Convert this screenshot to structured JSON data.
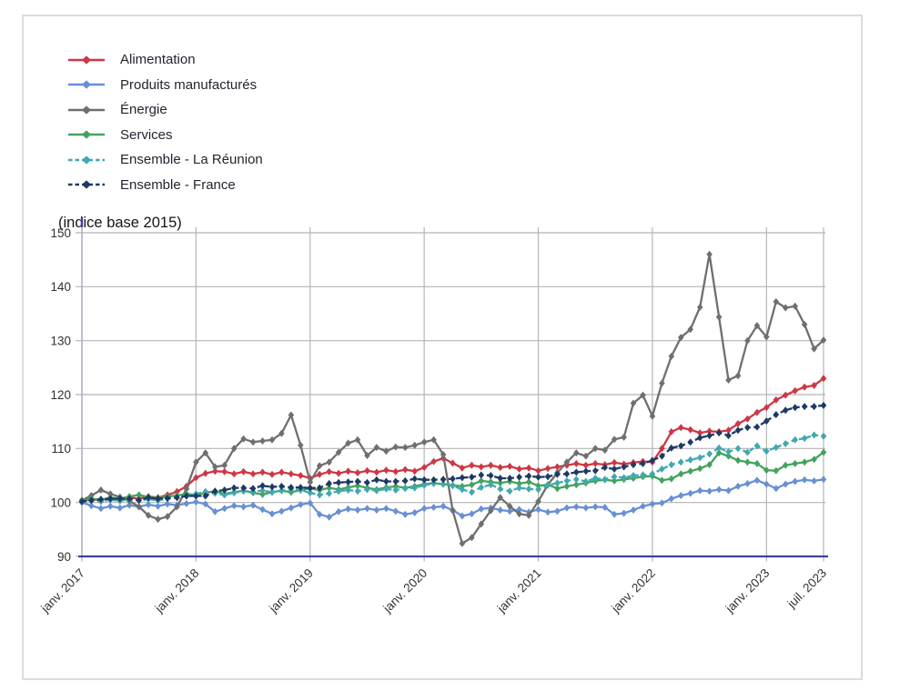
{
  "axis_title": "(indice base 2015)",
  "colors": {
    "axis_line": "#3b439c",
    "y_axis_line": "#a9abbe",
    "grid": "#b5b5b5",
    "tick_text": "#303030",
    "panel_border": "#dcdcdc",
    "background": "#ffffff"
  },
  "chart_data": {
    "type": "line",
    "title": "(indice base 2015)",
    "xlabel": "",
    "ylabel": "indice base 2015",
    "ylim": [
      90,
      150
    ],
    "y_ticks": [
      90,
      100,
      110,
      120,
      130,
      140,
      150
    ],
    "months": 79,
    "grid": true,
    "legend_position": "top-left",
    "x_ticks": [
      {
        "index": 0,
        "label": "janv. 2017"
      },
      {
        "index": 12,
        "label": "janv. 2018"
      },
      {
        "index": 24,
        "label": "janv. 2019"
      },
      {
        "index": 36,
        "label": "janv. 2020"
      },
      {
        "index": 48,
        "label": "janv. 2021"
      },
      {
        "index": 60,
        "label": "janv. 2022"
      },
      {
        "index": 72,
        "label": "janv. 2023"
      },
      {
        "index": 78,
        "label": "juil. 2023"
      }
    ],
    "series": [
      {
        "name": "Alimentation",
        "color": "#cd3745",
        "style": "solid",
        "values": [
          100.2,
          100.6,
          100.4,
          100.8,
          100.5,
          100.9,
          100.7,
          101.1,
          100.9,
          101.4,
          102.0,
          103.0,
          104.6,
          105.4,
          105.8,
          105.7,
          105.3,
          105.7,
          105.3,
          105.6,
          105.2,
          105.6,
          105.3,
          105.0,
          104.5,
          105.2,
          105.7,
          105.4,
          105.8,
          105.5,
          105.9,
          105.6,
          106.0,
          105.7,
          106.1,
          105.8,
          106.5,
          107.6,
          108.2,
          107.3,
          106.4,
          106.9,
          106.6,
          106.9,
          106.5,
          106.7,
          106.2,
          106.4,
          105.9,
          106.3,
          106.6,
          106.9,
          107.2,
          106.9,
          107.2,
          107.0,
          107.4,
          107.1,
          107.4,
          107.6,
          107.5,
          110.0,
          113.1,
          113.9,
          113.5,
          112.9,
          113.2,
          113.1,
          113.4,
          114.6,
          115.5,
          116.7,
          117.6,
          119.0,
          119.9,
          120.7,
          121.4,
          121.7,
          123.0
        ]
      },
      {
        "name": "Produits manufacturés",
        "color": "#6790d5",
        "style": "solid",
        "values": [
          100.0,
          99.4,
          98.9,
          99.3,
          99.0,
          99.5,
          99.2,
          99.6,
          99.3,
          99.7,
          99.5,
          99.8,
          100.1,
          99.7,
          98.3,
          98.9,
          99.4,
          99.2,
          99.5,
          98.7,
          97.9,
          98.4,
          99.0,
          99.6,
          99.9,
          97.8,
          97.3,
          98.3,
          98.8,
          98.6,
          98.9,
          98.6,
          98.9,
          98.4,
          97.8,
          98.1,
          98.9,
          99.1,
          99.3,
          98.6,
          97.5,
          97.9,
          98.8,
          99.0,
          98.6,
          98.4,
          98.7,
          98.2,
          98.7,
          98.2,
          98.4,
          99.0,
          99.2,
          99.0,
          99.2,
          99.1,
          97.8,
          98.0,
          98.6,
          99.3,
          99.7,
          99.9,
          100.7,
          101.3,
          101.7,
          102.2,
          102.1,
          102.4,
          102.2,
          103.0,
          103.5,
          104.1,
          103.4,
          102.6,
          103.4,
          103.9,
          104.2,
          104.0,
          104.3
        ]
      },
      {
        "name": "Énergie",
        "color": "#6f6f6f",
        "style": "solid",
        "values": [
          100.4,
          101.3,
          102.3,
          101.6,
          101.0,
          100.3,
          99.2,
          97.6,
          96.9,
          97.4,
          99.2,
          102.5,
          107.5,
          109.2,
          106.6,
          106.9,
          110.0,
          111.8,
          111.2,
          111.4,
          111.6,
          112.8,
          116.2,
          110.6,
          103.8,
          106.8,
          107.5,
          109.3,
          111.0,
          111.6,
          108.7,
          110.2,
          109.5,
          110.3,
          110.2,
          110.6,
          111.2,
          111.6,
          108.9,
          98.5,
          92.4,
          93.5,
          96.0,
          98.5,
          100.9,
          99.3,
          97.9,
          97.6,
          100.2,
          103.3,
          105.5,
          107.5,
          109.2,
          108.6,
          110.0,
          109.7,
          111.7,
          112.1,
          118.4,
          119.9,
          116.0,
          122.1,
          127.1,
          130.6,
          132.1,
          136.2,
          146.0,
          134.4,
          122.7,
          123.5,
          130.0,
          132.8,
          130.7,
          137.2,
          136.1,
          136.4,
          133.0,
          128.5,
          130.1
        ]
      },
      {
        "name": "Services",
        "color": "#44a25e",
        "style": "solid",
        "values": [
          100.4,
          100.7,
          100.5,
          100.9,
          100.7,
          101.1,
          101.4,
          101.0,
          100.8,
          101.1,
          101.3,
          101.6,
          101.4,
          101.8,
          102.1,
          101.6,
          101.9,
          102.2,
          101.8,
          101.5,
          101.9,
          102.2,
          101.9,
          102.3,
          102.6,
          102.3,
          102.7,
          102.4,
          102.8,
          103.1,
          102.7,
          102.4,
          102.8,
          103.0,
          102.7,
          103.0,
          103.4,
          103.6,
          103.4,
          103.2,
          103.0,
          103.3,
          104.0,
          103.8,
          103.6,
          103.9,
          103.5,
          103.8,
          103.1,
          103.3,
          102.6,
          103.0,
          103.3,
          103.6,
          104.0,
          104.2,
          104.0,
          104.3,
          104.5,
          104.8,
          104.9,
          104.1,
          104.4,
          105.3,
          105.8,
          106.3,
          107.0,
          109.2,
          108.6,
          107.8,
          107.5,
          107.2,
          106.0,
          105.9,
          106.9,
          107.2,
          107.5,
          108.0,
          109.3
        ]
      },
      {
        "name": "Ensemble - La Réunion",
        "color": "#41a8b0",
        "style": "dashed",
        "values": [
          100.1,
          100.3,
          100.2,
          100.5,
          100.3,
          100.6,
          100.4,
          100.6,
          100.4,
          100.7,
          100.9,
          101.2,
          101.6,
          102.0,
          101.7,
          101.4,
          101.8,
          102.1,
          102.0,
          102.2,
          101.9,
          102.2,
          102.5,
          102.3,
          101.8,
          101.4,
          101.7,
          102.1,
          102.3,
          102.1,
          102.4,
          102.2,
          102.5,
          102.3,
          102.6,
          102.7,
          103.2,
          103.5,
          103.4,
          103.1,
          102.4,
          101.9,
          102.8,
          103.3,
          102.5,
          102.1,
          102.7,
          102.5,
          102.4,
          103.2,
          103.6,
          104.0,
          104.3,
          103.9,
          104.5,
          104.3,
          104.8,
          104.6,
          105.0,
          105.1,
          105.3,
          106.2,
          107.0,
          107.5,
          107.9,
          108.3,
          109.0,
          110.1,
          109.4,
          110.0,
          109.3,
          110.5,
          109.5,
          110.2,
          110.9,
          111.6,
          111.9,
          112.5,
          112.3
        ]
      },
      {
        "name": "Ensemble - France",
        "color": "#1e3a64",
        "style": "dashed",
        "values": [
          100.2,
          100.4,
          100.6,
          100.7,
          100.7,
          100.7,
          100.4,
          100.9,
          100.7,
          100.8,
          100.9,
          101.2,
          101.2,
          101.2,
          102.1,
          102.3,
          102.7,
          102.7,
          102.6,
          103.1,
          102.9,
          103.0,
          102.8,
          102.8,
          102.7,
          102.7,
          103.5,
          103.7,
          103.8,
          103.9,
          103.7,
          104.2,
          103.9,
          103.9,
          104.0,
          104.4,
          104.2,
          104.2,
          104.3,
          104.4,
          104.6,
          104.7,
          105.1,
          105.0,
          104.5,
          104.5,
          104.7,
          104.9,
          104.7,
          104.8,
          105.2,
          105.3,
          105.6,
          105.8,
          105.9,
          106.5,
          106.2,
          106.6,
          107.0,
          107.2,
          107.8,
          108.6,
          110.1,
          110.5,
          111.2,
          112.0,
          112.4,
          112.9,
          112.4,
          113.4,
          113.9,
          114.0,
          115.1,
          116.3,
          117.1,
          117.6,
          117.8,
          117.8,
          118.0
        ]
      }
    ]
  }
}
